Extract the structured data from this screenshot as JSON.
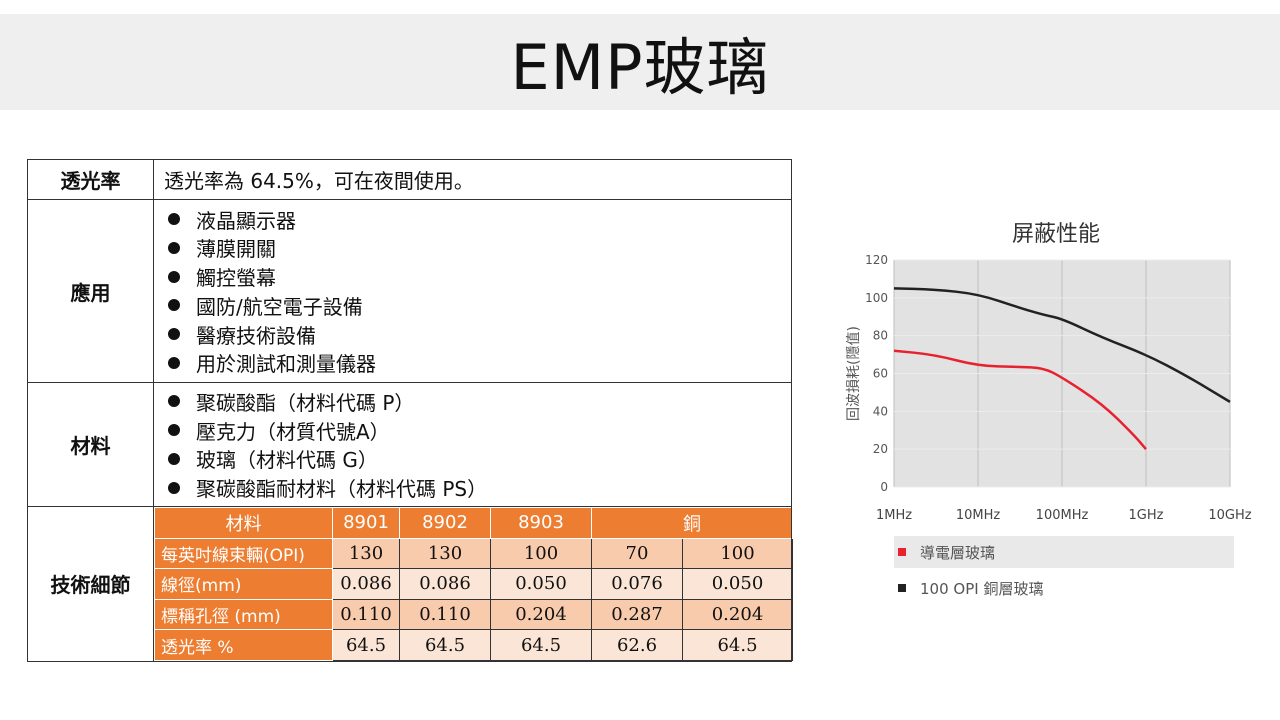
{
  "header": {
    "title": "EMP玻璃"
  },
  "table": {
    "transmittance": {
      "label": "透光率",
      "text": "透光率為 64.5%，可在夜間使用。"
    },
    "applications": {
      "label": "應用",
      "items": [
        "液晶顯示器",
        "薄膜開關",
        "觸控螢幕",
        "國防/航空電子設備",
        "醫療技術設備",
        "用於測試和測量儀器"
      ]
    },
    "materials": {
      "label": "材料",
      "items": [
        "聚碳酸酯（材料代碼 P）",
        "壓克力（材質代號A）",
        "玻璃（材料代碼 G）",
        "聚碳酸酯耐材料（材料代碼 PS）"
      ]
    },
    "specs": {
      "label": "技術細節",
      "headers": [
        "材料",
        "8901",
        "8902",
        "8903",
        "銅"
      ],
      "rows": [
        {
          "label": "每英吋線束輛(OPI)",
          "values": [
            "130",
            "130",
            "100",
            "70",
            "100"
          ]
        },
        {
          "label": "線徑(mm)",
          "values": [
            "0.086",
            "0.086",
            "0.050",
            "0.076",
            "0.050"
          ]
        },
        {
          "label": "標稱孔徑 (mm)",
          "values": [
            "0.110",
            "0.110",
            "0.204",
            "0.287",
            "0.204"
          ]
        },
        {
          "label": "透光率 %",
          "values": [
            "64.5",
            "64.5",
            "64.5",
            "62.6",
            "64.5"
          ]
        }
      ]
    }
  },
  "chart_data": {
    "type": "line",
    "title": "屏蔽性能",
    "xlabel": "",
    "ylabel": "回波損耗(隱值)",
    "x_scale": "log",
    "x_ticks": [
      "1MHz",
      "10MHz",
      "100MHz",
      "1GHz",
      "10GHz"
    ],
    "y_ticks": [
      0,
      20,
      40,
      60,
      80,
      100,
      120
    ],
    "ylim": [
      0,
      120
    ],
    "grid": true,
    "legend_position": "bottom",
    "series": [
      {
        "name": "導電層玻璃",
        "color": "#e8212e",
        "points": [
          [
            1,
            72
          ],
          [
            3,
            70
          ],
          [
            10,
            64
          ],
          [
            30,
            63.5
          ],
          [
            60,
            63
          ],
          [
            100,
            58
          ],
          [
            300,
            44
          ],
          [
            700,
            28
          ],
          [
            1000,
            20
          ]
        ]
      },
      {
        "name": "100 OPI 銅層玻璃",
        "color": "#222222",
        "points": [
          [
            1,
            105
          ],
          [
            3,
            104.5
          ],
          [
            10,
            102
          ],
          [
            30,
            95
          ],
          [
            60,
            91
          ],
          [
            100,
            89
          ],
          [
            300,
            79
          ],
          [
            1000,
            70
          ],
          [
            3000,
            59
          ],
          [
            10000,
            45
          ]
        ]
      }
    ]
  }
}
